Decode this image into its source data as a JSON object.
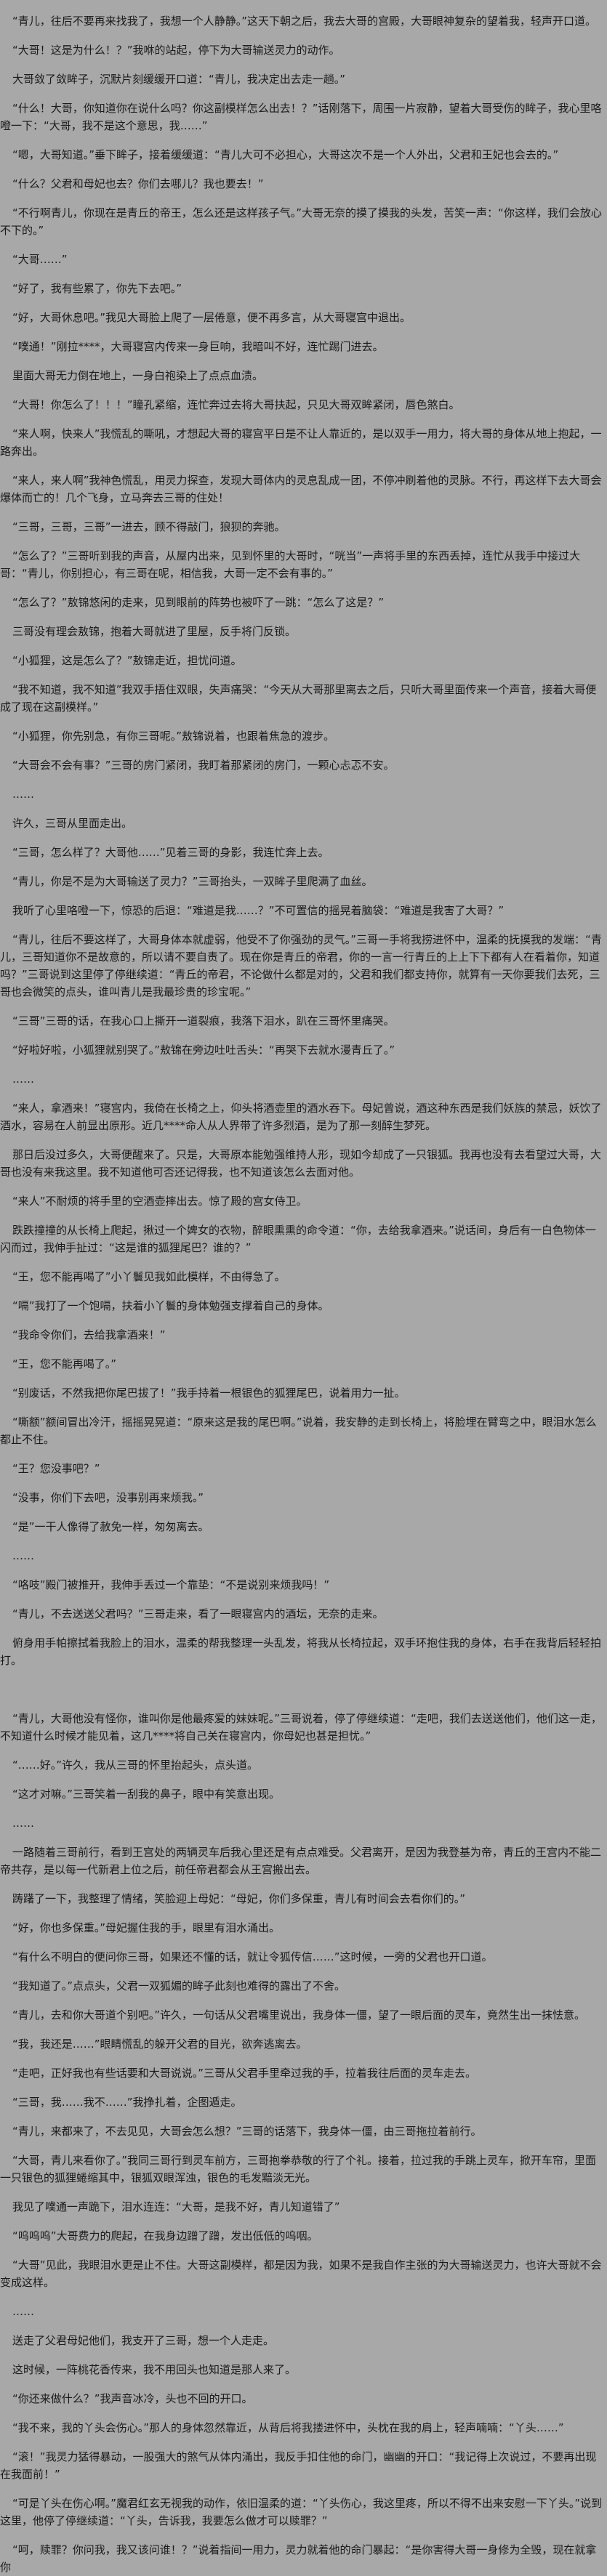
{
  "page": {
    "background_color": "#a8a8a8",
    "text_color": "#1a1a1a"
  },
  "novel": {
    "paragraphs": [
      "“青儿，往后不要再来找我了，我想一个人静静。”这天下朝之后，我去大哥的宫殿，大哥眼神复杂的望着我，轻声开口道。",
      "“大哥！这是为什么！？”我咻的站起，停下为大哥输送灵力的动作。",
      "大哥敛了敛眸子，沉默片刻缓缓开口道：“青儿，我决定出去走一趟。”",
      "“什么！大哥，你知道你在说什么吗？你这副模样怎么出去！？”话刚落下，周围一片寂静，望着大哥受伤的眸子，我心里咯噔一下：“大哥，我不是这个意思，我……”",
      "“嗯，大哥知道。”垂下眸子，接着缓缓道：“青儿大可不必担心，大哥这次不是一个人外出，父君和王妃也会去的。”",
      "“什么？父君和母妃也去？你们去哪儿？我也要去！”",
      "“不行啊青儿，你现在是青丘的帝王，怎么还是这样孩子气。”大哥无奈的摸了摸我的头发，苦笑一声：“你这样，我们会放心不下的。”",
      "“大哥……”",
      "“好了，我有些累了，你先下去吧。”",
      "“好，大哥休息吧。”我见大哥脸上爬了一层倦意，便不再多言，从大哥寝宫中退出。",
      "“噗通！”刚拉****，大哥寝宫内传来一身巨响，我暗叫不好，连忙踢门进去。",
      "里面大哥无力倒在地上，一身白袍染上了点点血渍。",
      "“大哥！你怎么了！！！”瞳孔紧缩，连忙奔过去将大哥扶起，只见大哥双眸紧闭，唇色煞白。",
      "“来人啊，快来人”我慌乱的嘶吼，才想起大哥的寝宫平日是不让人靠近的，是以双手一用力，将大哥的身体从地上抱起，一路奔出。",
      "“来人，来人啊”我神色慌乱，用灵力探查，发现大哥体内的灵息乱成一团，不停冲刷着他的灵脉。不行，再这样下去大哥会爆体而亡的！几个飞身，立马奔去三哥的住处！",
      "“三哥，三哥，三哥”一进去，顾不得敲门，狼狈的奔驰。",
      "“怎么了？”三哥听到我的声音，从屋内出来，见到怀里的大哥时，“咣当”一声将手里的东西丢掉，连忙从我手中接过大哥：“青儿，你别担心，有三哥在呢，相信我，大哥一定不会有事的。”",
      "“怎么了？”敖锦悠闲的走来，见到眼前的阵势也被吓了一跳：“怎么了这是？”",
      "三哥没有理会敖锦，抱着大哥就进了里屋，反手将门反锁。",
      "“小狐狸，这是怎么了？”敖锦走近，担忧问道。",
      "“我不知道，我不知道”我双手捂住双眼，失声痛哭：“今天从大哥那里离去之后，只听大哥里面传来一个声音，接着大哥便成了现在这副模样。”",
      "“小狐狸，你先别急，有你三哥呢。”敖锦说着，也跟着焦急的渡步。",
      "“大哥会不会有事？”三哥的房门紧闭，我盯着那紧闭的房门，一颗心忐忑不安。",
      "……",
      "许久，三哥从里面走出。",
      "“三哥，怎么样了？大哥他……”见着三哥的身影，我连忙奔上去。",
      "“青儿，你是不是为大哥输送了灵力？”三哥抬头，一双眸子里爬满了血丝。",
      "我听了心里咯噔一下，惊恐的后退：“难道是我……？”不可置信的摇晃着脑袋：“难道是我害了大哥？”",
      "“青儿，往后不要这样了，大哥身体本就虚弱，他受不了你强劲的灵气。”三哥一手将我捞进怀中，温柔的抚摸我的发端：“青儿，三哥知道你不是故意的，所以请不要自责了。现在你是青丘的帝君，你的一言一行青丘的上上下下都有人在看着你，知道吗？”三哥说到这里停了停继续道：“青丘的帝君，不论做什么都是对的，父君和我们都支持你，就算有一天你要我们去死，三哥也会微笑的点头，谁叫青儿是我最珍贵的珍宝呢。”",
      "“三哥”三哥的话，在我心口上撕开一道裂痕，我落下泪水，趴在三哥怀里痛哭。",
      "“好啦好啦，小狐狸就别哭了。”敖锦在旁边吐吐舌头：“再哭下去就水漫青丘了。”",
      "……",
      "“来人，拿酒来！”寝宫内，我倚在长椅之上，仰头将酒壶里的酒水吞下。母妃曾说，酒这种东西是我们妖族的禁忌，妖饮了酒水，容易在人前显出原形。近几****命人从人界带了许多烈酒，是为了那一刻醉生梦死。",
      "那日后没过多久，大哥便醒来了。只是，大哥原本能勉强维持人形，现如今却成了一只银狐。我再也没有去看望过大哥，大哥也没有来我这里。我不知道他可否还记得我，也不知道该怎么去面对他。",
      "“来人”不耐烦的将手里的空酒壶摔出去。惊了殿的宫女侍卫。",
      "跌跌撞撞的从长椅上爬起，揪过一个婢女的衣物，醉眼熏熏的命令道：“你，去给我拿酒来。”说话间，身后有一白色物体一闪而过，我伸手扯过：“这是谁的狐狸尾巴？谁的？”",
      "“王，您不能再喝了”小丫鬟见我如此模样，不由得急了。",
      "“嗝”我打了一个饱嗝，扶着小丫鬟的身体勉强支撑着自己的身体。",
      "“我命令你们，去给我拿酒来！”",
      "“王，您不能再喝了。”",
      "“别废话，不然我把你尾巴拔了！”我手持着一根银色的狐狸尾巴，说着用力一扯。",
      "“嘶额”额间冒出冷汗，摇摇晃晃道：“原来这是我的尾巴啊。”说着，我安静的走到长椅上，将脸埋在臂弯之中，眼泪水怎么都止不住。",
      "“王？您没事吧？”",
      "“没事，你们下去吧，没事别再来烦我。”",
      "“是”一干人像得了赦免一样，匆匆离去。",
      "……",
      "“咯吱”殿门被推开，我伸手丢过一个靠垫：“不是说别来烦我吗！”",
      "“青儿，不去送送父君吗？”三哥走来，看了一眼寝宫内的酒坛，无奈的走来。",
      "俯身用手帕擦拭着我脸上的泪水，温柔的帮我整理一头乱发，将我从长椅拉起，双手环抱住我的身体，右手在我背后轻轻拍打。",
      "",
      "“青儿，大哥他没有怪你，谁叫你是他最疼爱的妹妹呢。”三哥说着，停了停继续道：“走吧，我们去送送他们，他们这一走，不知道什么时候才能见着，这几****将自己关在寝宫内，你母妃也甚是担忧。”",
      "“……好。”许久，我从三哥的怀里抬起头，点头道。",
      "“这才对嘛。”三哥笑着一刮我的鼻子，眼中有笑意出现。",
      "……",
      "一路随着三哥前行，看到王宫处的两辆灵车后我心里还是有点点难受。父君离开，是因为我登基为帝，青丘的王宫内不能二帝共存，是以每一代新君上位之后，前任帝君都会从王宫搬出去。",
      "踌躇了一下，我整理了情绪，笑脸迎上母妃：“母妃，你们多保重，青儿有时间会去看你们的。”",
      "“好，你也多保重。”母妃握住我的手，眼里有泪水涌出。",
      "“有什么不明白的便问你三哥，如果还不懂的话，就让令狐传信……”这时候，一旁的父君也开口道。",
      "“我知道了。”点点头，父君一双狐媚的眸子此刻也难得的露出了不舍。",
      "“青儿，去和你大哥道个别吧。”许久，一句话从父君嘴里说出，我身体一僵，望了一眼后面的灵车，竟然生出一抹怯意。",
      "“我，我还是……”眼睛慌乱的躲开父君的目光，欲奔逃离去。",
      "“走吧，正好我也有些话要和大哥说说。”三哥从父君手里牵过我的手，拉着我往后面的灵车走去。",
      "“三哥，我……我不……”我挣扎着，企图遁走。",
      "“青儿，来都来了，不去见见，大哥会怎么想？”三哥的话落下，我身体一僵，由三哥拖拉着前行。",
      "“大哥，青儿来看你了。”我同三哥行到灵车前方，三哥抱拳恭敬的行了个礼。接着，拉过我的手跳上灵车，掀开车帘，里面一只银色的狐狸蜷缩其中，银狐双眼浑浊，银色的毛发黯淡无光。",
      "我见了噗通一声跪下，泪水连连：“大哥，是我不好，青儿知道错了”",
      "“呜呜呜”大哥费力的爬起，在我身边蹭了蹭，发出低低的呜咽。",
      "“大哥”见此，我眼泪水更是止不住。大哥这副模样，都是因为我，如果不是我自作主张的为大哥输送灵力，也许大哥就不会变成这样。",
      "……",
      "送走了父君母妃他们，我支开了三哥，想一个人走走。",
      "这时候，一阵桃花香传来，我不用回头也知道是那人来了。",
      "“你还来做什么？”我声音冰冷，头也不回的开口。",
      "“我不来，我的丫头会伤心。”那人的身体忽然靠近，从背后将我搂进怀中，头枕在我的肩上，轻声喃喃：“丫头……”",
      "“滚！”我灵力猛得暴动，一股强大的煞气从体内涌出，我反手扣住他的命门，幽幽的开口：“我记得上次说过，不要再出现在我面前！”",
      "“可是丫头在伤心啊。”魔君红玄无视我的动作，依旧温柔的道：“丫头伤心，我这里疼，所以不得不出来安慰一下丫头。”说到这里，他停了停继续道：“丫头，告诉我，我要怎么做才可以赎罪？”",
      "“呵，赎罪？你问我，我又该问谁！？”说着指间一用力，灵力就着他的命门暴起：“是你害得大哥一身修为全毁，现在就拿你"
    ]
  }
}
